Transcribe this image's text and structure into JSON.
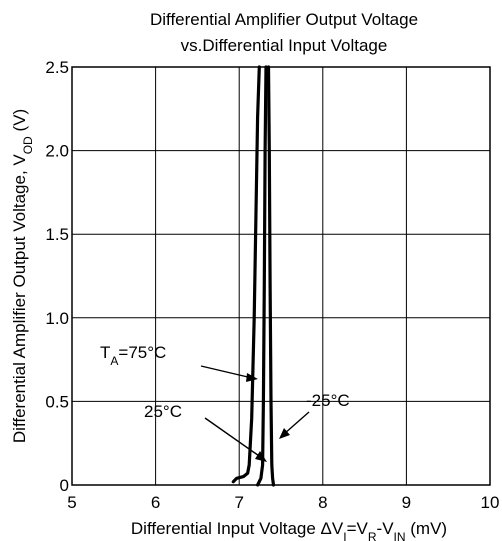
{
  "chart_data": {
    "type": "line",
    "title_line1": "Differential Amplifier Output Voltage",
    "title_line2": "vs.Differential Input Voltage",
    "xlabel": {
      "text": "Differential Input Voltage ΔV",
      "sub1": "I",
      "mid1": "=V",
      "sub2": "R",
      "mid2": "-V",
      "sub3": "IN",
      "tail": " (mV)"
    },
    "ylabel": {
      "text": "Differential Amplifier Output Voltage, V",
      "sub": "OD",
      "tail": " (V)"
    },
    "xlim": [
      5,
      10
    ],
    "ylim": [
      0,
      2.5
    ],
    "x_ticks": [
      5,
      6,
      7,
      8,
      9,
      10
    ],
    "x_tick_labels": [
      "5",
      "6",
      "7",
      "8",
      "9",
      "10"
    ],
    "y_ticks": [
      0,
      0.5,
      1.0,
      1.5,
      2.0,
      2.5
    ],
    "y_tick_labels": [
      "0",
      "0.5",
      "1.0",
      "1.5",
      "2.0",
      "2.5"
    ],
    "grid": true,
    "series": [
      {
        "name": "TA=75°C",
        "x": [
          6.93,
          6.97,
          7.05,
          7.1,
          7.12,
          7.15,
          7.18,
          7.2,
          7.22,
          7.24
        ],
        "y": [
          0.02,
          0.04,
          0.05,
          0.07,
          0.12,
          0.4,
          1.0,
          1.6,
          2.2,
          2.5
        ]
      },
      {
        "name": "25°C",
        "x": [
          7.22,
          7.26,
          7.28,
          7.29,
          7.3,
          7.31,
          7.32
        ],
        "y": [
          0.0,
          0.04,
          0.12,
          0.5,
          1.2,
          2.0,
          2.5
        ]
      },
      {
        "name": "-25°C",
        "x": [
          7.41,
          7.4,
          7.39,
          7.38,
          7.37,
          7.36,
          7.35
        ],
        "y": [
          0.0,
          0.04,
          0.12,
          0.5,
          1.2,
          2.0,
          2.5
        ]
      }
    ],
    "annotations": [
      {
        "label_main": "T",
        "label_sub": "A",
        "label_tail": "=75°C",
        "target_series": 0
      },
      {
        "label_main": "25°C",
        "label_sub": "",
        "label_tail": "",
        "target_series": 1
      },
      {
        "label_main": "-25°C",
        "label_sub": "",
        "label_tail": "",
        "target_series": 2
      }
    ]
  }
}
